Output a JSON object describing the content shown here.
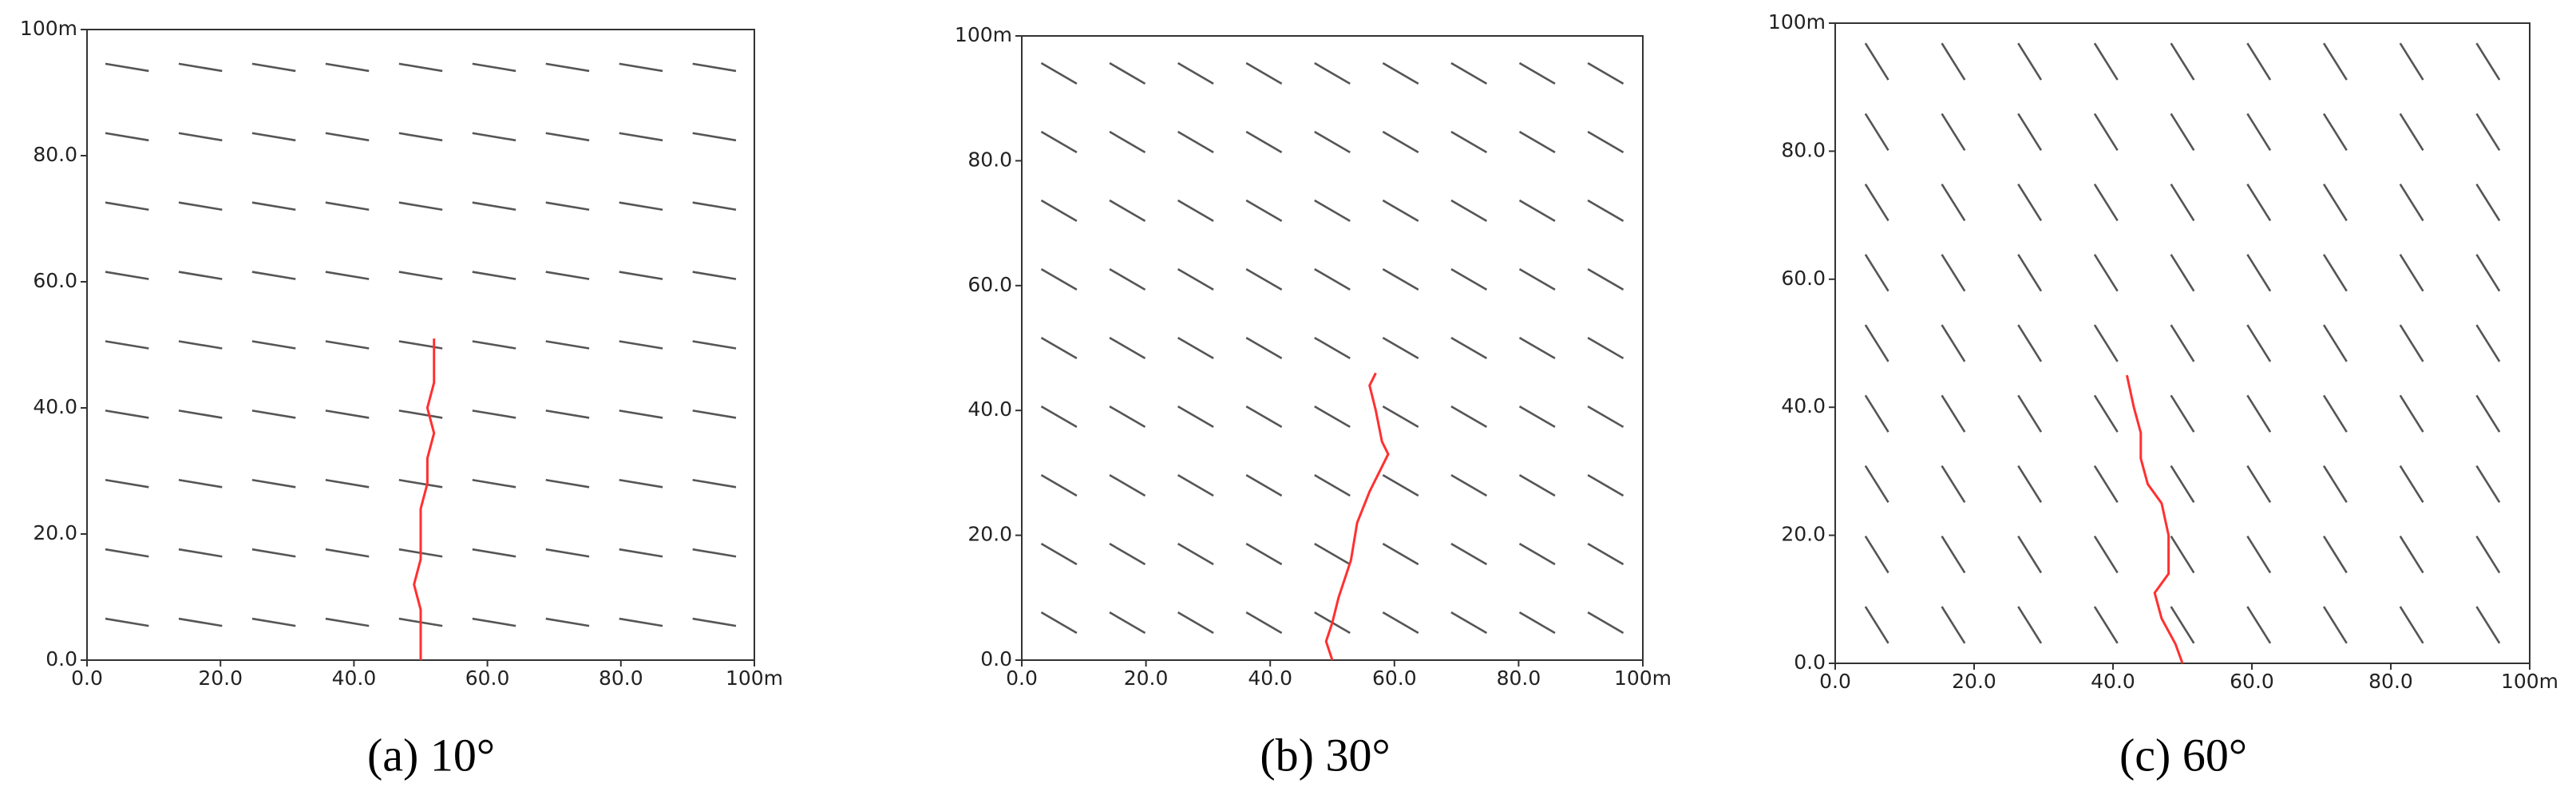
{
  "chart_data": [
    {
      "type": "line",
      "angle": 10,
      "caption": "(a) 10°",
      "color": "#ff3030",
      "fracture_color": "#555555",
      "x": [
        50,
        50,
        50,
        49,
        50,
        50,
        50,
        51,
        51,
        52,
        51,
        52,
        52,
        52
      ],
      "values": [
        0,
        4,
        8,
        12,
        16,
        20,
        24,
        28,
        32,
        36,
        40,
        44,
        48,
        51
      ],
      "xlim": [
        0,
        100
      ],
      "ylim": [
        0,
        100
      ],
      "xticks": [
        {
          "value": 0,
          "label": "0.0"
        },
        {
          "value": 20,
          "label": "20.0"
        },
        {
          "value": 40,
          "label": "40.0"
        },
        {
          "value": 60,
          "label": "60.0"
        },
        {
          "value": 80,
          "label": "80.0"
        },
        {
          "value": 100,
          "label": "100m"
        }
      ],
      "yticks": [
        {
          "value": 0,
          "label": "0.0"
        },
        {
          "value": 20,
          "label": "20.0"
        },
        {
          "value": 40,
          "label": "40.0"
        },
        {
          "value": 60,
          "label": "60.0"
        },
        {
          "value": 80,
          "label": "80.0"
        },
        {
          "value": 100,
          "label": "100m"
        }
      ]
    },
    {
      "type": "line",
      "angle": 30,
      "caption": "(b) 30°",
      "color": "#ff3030",
      "fracture_color": "#555555",
      "x": [
        50,
        49,
        50,
        51,
        53,
        54,
        56,
        58,
        59,
        58,
        57,
        56,
        57
      ],
      "values": [
        0,
        3,
        6,
        10,
        16,
        22,
        27,
        31,
        33,
        35,
        40,
        44,
        46
      ],
      "xlim": [
        0,
        100
      ],
      "ylim": [
        0,
        100
      ],
      "xticks": [
        {
          "value": 0,
          "label": "0.0"
        },
        {
          "value": 20,
          "label": "20.0"
        },
        {
          "value": 40,
          "label": "40.0"
        },
        {
          "value": 60,
          "label": "60.0"
        },
        {
          "value": 80,
          "label": "80.0"
        },
        {
          "value": 100,
          "label": "100m"
        }
      ],
      "yticks": [
        {
          "value": 0,
          "label": "0.0"
        },
        {
          "value": 20,
          "label": "20.0"
        },
        {
          "value": 40,
          "label": "40.0"
        },
        {
          "value": 60,
          "label": "60.0"
        },
        {
          "value": 80,
          "label": "80.0"
        },
        {
          "value": 100,
          "label": "100m"
        }
      ]
    },
    {
      "type": "line",
      "angle": 60,
      "caption": "(c) 60°",
      "color": "#ff3030",
      "fracture_color": "#555555",
      "x": [
        50,
        49,
        47,
        46,
        48,
        48,
        48,
        47,
        45,
        44,
        44,
        43,
        42
      ],
      "values": [
        0,
        3,
        7,
        11,
        14,
        17,
        20,
        25,
        28,
        32,
        36,
        40,
        45
      ],
      "xlim": [
        0,
        100
      ],
      "ylim": [
        0,
        100
      ],
      "xticks": [
        {
          "value": 0,
          "label": "0.0"
        },
        {
          "value": 20,
          "label": "20.0"
        },
        {
          "value": 40,
          "label": "40.0"
        },
        {
          "value": 60,
          "label": "60.0"
        },
        {
          "value": 80,
          "label": "80.0"
        },
        {
          "value": 100,
          "label": "100m"
        }
      ],
      "yticks": [
        {
          "value": 0,
          "label": "0.0"
        },
        {
          "value": 20,
          "label": "20.0"
        },
        {
          "value": 40,
          "label": "40.0"
        },
        {
          "value": 60,
          "label": "60.0"
        },
        {
          "value": 80,
          "label": "80.0"
        },
        {
          "value": 100,
          "label": "100m"
        }
      ]
    }
  ]
}
